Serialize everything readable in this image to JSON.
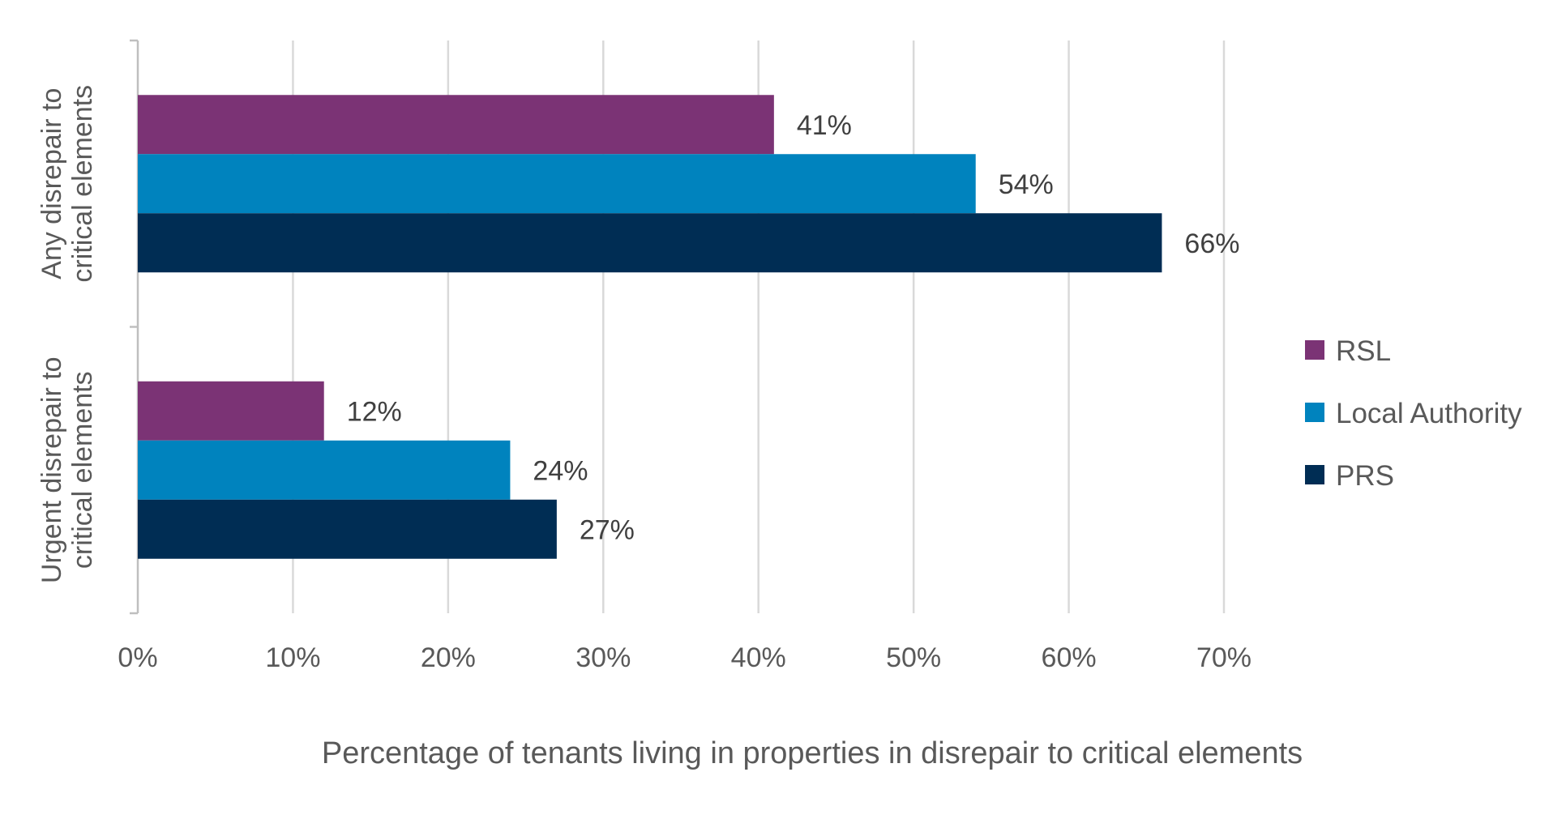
{
  "chart_data": {
    "type": "bar",
    "orientation": "horizontal",
    "categories": [
      [
        "Any disrepair to",
        "critical elements"
      ],
      [
        "Urgent disrepair to",
        "critical elements"
      ]
    ],
    "series": [
      {
        "name": "RSL",
        "color": "#7b3375",
        "values": [
          41,
          12
        ],
        "labels": [
          "41%",
          "12%"
        ]
      },
      {
        "name": "Local Authority",
        "color": "#0083be",
        "values": [
          54,
          24
        ],
        "labels": [
          "54%",
          "24%"
        ]
      },
      {
        "name": "PRS",
        "color": "#002d54",
        "values": [
          66,
          27
        ],
        "labels": [
          "66%",
          "27%"
        ]
      }
    ],
    "xlim": [
      0,
      70
    ],
    "xticks": [
      0,
      10,
      20,
      30,
      40,
      50,
      60,
      70
    ],
    "xtick_labels": [
      "0%",
      "10%",
      "20%",
      "30%",
      "40%",
      "50%",
      "60%",
      "70%"
    ],
    "xlabel": "Percentage of tenants living in properties in disrepair to critical elements",
    "grid": "vertical",
    "legend_position": "right"
  }
}
